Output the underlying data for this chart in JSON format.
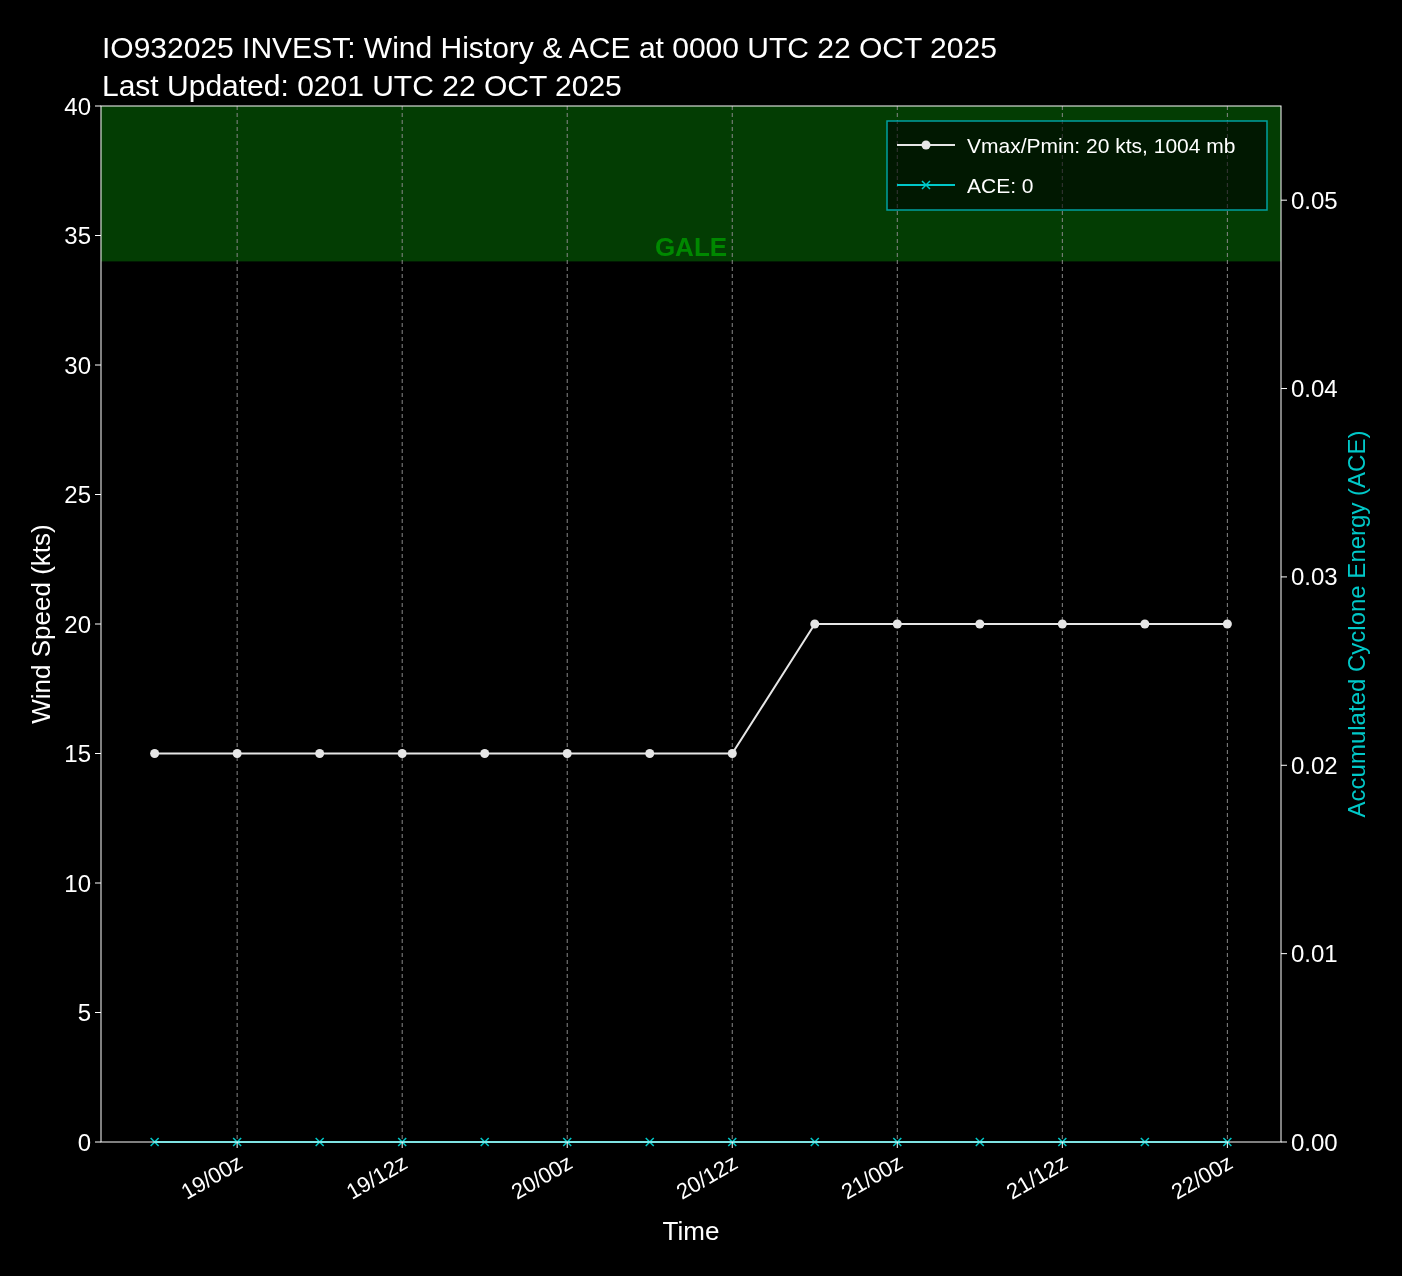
{
  "chart_data": {
    "type": "line",
    "title": "IO932025 INVEST: Wind History & ACE at 0000 UTC 22 OCT 2025",
    "subtitle": "Last Updated: 0201 UTC 22 OCT 2025",
    "xlabel": "Time",
    "ylabel": "Wind Speed (kts)",
    "y2label": "Accumulated Cyclone Energy (ACE)",
    "x": [
      "2025-10-18T18:00",
      "2025-10-19T00:00",
      "2025-10-19T06:00",
      "2025-10-19T12:00",
      "2025-10-19T18:00",
      "2025-10-20T00:00",
      "2025-10-20T06:00",
      "2025-10-20T12:00",
      "2025-10-20T18:00",
      "2025-10-21T00:00",
      "2025-10-21T06:00",
      "2025-10-21T12:00",
      "2025-10-21T18:00",
      "2025-10-22T00:00"
    ],
    "series": [
      {
        "name": "Vmax/Pmin: 20 kts, 1004 mb",
        "color": "#e6e6e6",
        "marker": "circle",
        "values": [
          15,
          15,
          15,
          15,
          15,
          15,
          15,
          15,
          20,
          20,
          20,
          20,
          20,
          20
        ]
      },
      {
        "name": "ACE: 0",
        "color": "#00c8c8",
        "marker": "cross",
        "axis": "y2",
        "values": [
          0,
          0,
          0,
          0,
          0,
          0,
          0,
          0,
          0,
          0,
          0,
          0,
          0,
          0
        ]
      }
    ],
    "xlim": [
      "2025-10-18T14:06",
      "2025-10-22T03:54"
    ],
    "xticks": [
      {
        "value": "2025-10-19T00:00",
        "label": "19/00z"
      },
      {
        "value": "2025-10-19T12:00",
        "label": "19/12z"
      },
      {
        "value": "2025-10-20T00:00",
        "label": "20/00z"
      },
      {
        "value": "2025-10-20T12:00",
        "label": "20/12z"
      },
      {
        "value": "2025-10-21T00:00",
        "label": "21/00z"
      },
      {
        "value": "2025-10-21T12:00",
        "label": "21/12z"
      },
      {
        "value": "2025-10-22T00:00",
        "label": "22/00z"
      }
    ],
    "ylim": [
      0,
      40
    ],
    "yticks": [
      0,
      5,
      10,
      15,
      20,
      25,
      30,
      35,
      40
    ],
    "y2lim": [
      0,
      0.055
    ],
    "y2ticks": [
      {
        "value": 0,
        "label": "0.00"
      },
      {
        "value": 0.01,
        "label": "0.01"
      },
      {
        "value": 0.02,
        "label": "0.02"
      },
      {
        "value": 0.03,
        "label": "0.03"
      },
      {
        "value": 0.04,
        "label": "0.04"
      },
      {
        "value": 0.05,
        "label": "0.05"
      }
    ],
    "bands": [
      {
        "axis": "y",
        "from": 34,
        "to": 40,
        "label": "GALE",
        "color": "#033d03"
      }
    ],
    "grid": "x",
    "legend": "top right",
    "line_style": "solid"
  }
}
